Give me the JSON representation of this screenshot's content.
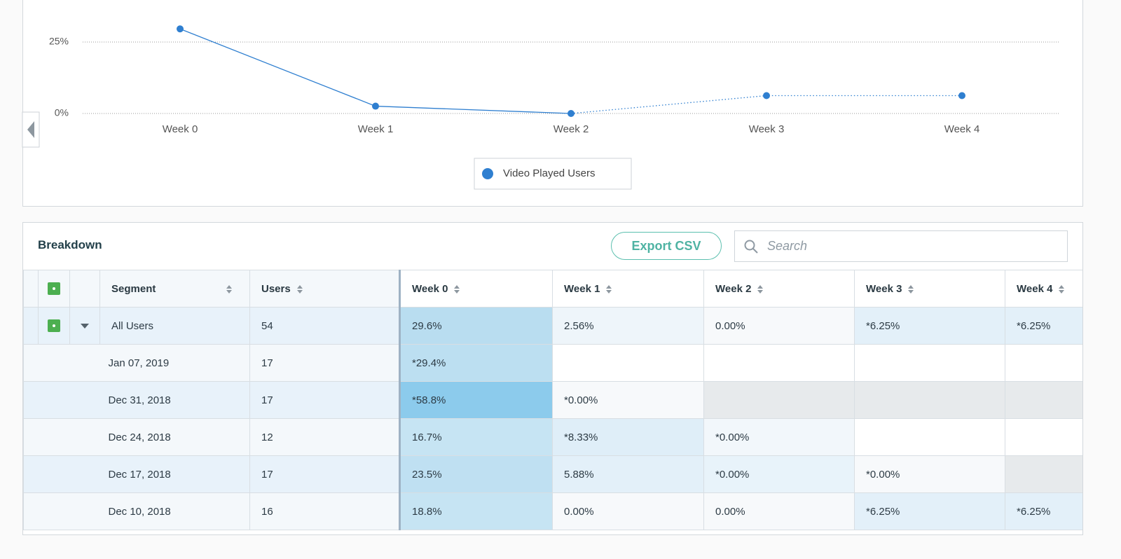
{
  "chart_data": {
    "type": "line",
    "categories": [
      "Week 0",
      "Week 1",
      "Week 2",
      "Week 3",
      "Week 4"
    ],
    "series": [
      {
        "name": "Video Played Users",
        "color": "#2f7fd0",
        "values": [
          29.6,
          2.56,
          0,
          6.25,
          6.25
        ]
      }
    ],
    "ylim": [
      0,
      30
    ],
    "yticks": [
      {
        "value": 0,
        "label": "0%"
      },
      {
        "value": 25,
        "label": "25%"
      }
    ],
    "grid": true
  },
  "table": {
    "title": "Breakdown",
    "export_button": "Export CSV",
    "search_placeholder": "Search",
    "columns": [
      "Segment",
      "Users",
      "Week 0",
      "Week 1",
      "Week 2",
      "Week 3",
      "Week 4"
    ],
    "rows": [
      {
        "segment": "All Users",
        "users": 54,
        "cells": [
          "29.6%",
          "2.56%",
          "0.00%",
          "*6.25%",
          "*6.25%"
        ]
      },
      {
        "segment": "Jan 07, 2019",
        "users": 17,
        "cells": [
          "*29.4%",
          null,
          null,
          null,
          null
        ]
      },
      {
        "segment": "Dec 31, 2018",
        "users": 17,
        "cells": [
          "*58.8%",
          "*0.00%",
          null,
          null,
          null
        ]
      },
      {
        "segment": "Dec 24, 2018",
        "users": 12,
        "cells": [
          "16.7%",
          "*8.33%",
          "*0.00%",
          null,
          null
        ]
      },
      {
        "segment": "Dec 17, 2018",
        "users": 17,
        "cells": [
          "23.5%",
          "5.88%",
          "*0.00%",
          "*0.00%",
          null
        ]
      },
      {
        "segment": "Dec 10, 2018",
        "users": 16,
        "cells": [
          "18.8%",
          "0.00%",
          "0.00%",
          "*6.25%",
          "*6.25%"
        ]
      }
    ]
  }
}
